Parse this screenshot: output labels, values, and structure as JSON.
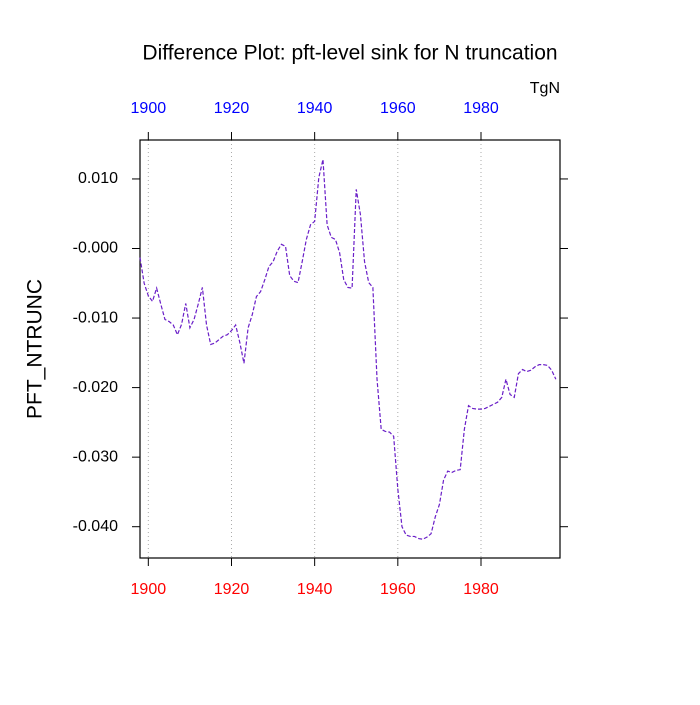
{
  "chart_data": {
    "type": "line",
    "title": "Difference Plot: pft-level sink for N truncation",
    "units": "TgN",
    "ylabel": "PFT_NTRUNC",
    "x": [
      1898,
      1899,
      1900,
      1901,
      1902,
      1903,
      1904,
      1905,
      1906,
      1907,
      1908,
      1909,
      1910,
      1911,
      1912,
      1913,
      1914,
      1915,
      1916,
      1917,
      1918,
      1919,
      1920,
      1921,
      1922,
      1923,
      1924,
      1925,
      1926,
      1927,
      1928,
      1929,
      1930,
      1931,
      1932,
      1933,
      1934,
      1935,
      1936,
      1937,
      1938,
      1939,
      1940,
      1941,
      1942,
      1943,
      1944,
      1945,
      1946,
      1947,
      1948,
      1949,
      1950,
      1951,
      1952,
      1953,
      1954,
      1955,
      1956,
      1957,
      1958,
      1959,
      1960,
      1961,
      1962,
      1963,
      1964,
      1965,
      1966,
      1967,
      1968,
      1969,
      1970,
      1971,
      1972,
      1973,
      1974,
      1975,
      1976,
      1977,
      1978,
      1979,
      1980,
      1981,
      1982,
      1983,
      1984,
      1985,
      1986,
      1987,
      1988,
      1989,
      1990,
      1991,
      1992,
      1993,
      1994,
      1995,
      1996,
      1997,
      1998
    ],
    "series": [
      {
        "name": "PFT_NTRUNC",
        "color": "#6a1fc8",
        "values": [
          -0.0013,
          -0.005,
          -0.0068,
          -0.0076,
          -0.0057,
          -0.008,
          -0.0102,
          -0.0105,
          -0.011,
          -0.0124,
          -0.0109,
          -0.0079,
          -0.0114,
          -0.0102,
          -0.008,
          -0.0056,
          -0.011,
          -0.0138,
          -0.0136,
          -0.0131,
          -0.0126,
          -0.0124,
          -0.0118,
          -0.011,
          -0.0135,
          -0.0165,
          -0.0114,
          -0.0095,
          -0.0069,
          -0.0062,
          -0.0045,
          -0.0026,
          -0.0019,
          -0.0004,
          0.0006,
          0.0003,
          -0.0039,
          -0.0047,
          -0.0049,
          -0.0019,
          0.0013,
          0.0034,
          0.0039,
          0.0102,
          0.0128,
          0.0034,
          0.0016,
          0.0013,
          -0.0006,
          -0.0045,
          -0.0056,
          -0.0057,
          0.0085,
          0.0049,
          -0.0019,
          -0.0049,
          -0.0056,
          -0.0188,
          -0.026,
          -0.0263,
          -0.0264,
          -0.027,
          -0.0346,
          -0.04,
          -0.0412,
          -0.0414,
          -0.0414,
          -0.0417,
          -0.0418,
          -0.0415,
          -0.041,
          -0.0386,
          -0.0368,
          -0.0333,
          -0.032,
          -0.0322,
          -0.0319,
          -0.0318,
          -0.026,
          -0.0226,
          -0.023,
          -0.0231,
          -0.0231,
          -0.023,
          -0.0227,
          -0.0224,
          -0.0221,
          -0.0214,
          -0.0188,
          -0.021,
          -0.0214,
          -0.018,
          -0.0174,
          -0.0177,
          -0.0175,
          -0.017,
          -0.0167,
          -0.0167,
          -0.0168,
          -0.0175,
          -0.0188
        ]
      }
    ],
    "xlim": [
      1898,
      1999
    ],
    "xticks": [
      1900,
      1920,
      1940,
      1960,
      1980
    ],
    "ylim": [
      -0.0445,
      0.0156
    ],
    "yticks": [
      {
        "value": 0.01,
        "label": "0.010"
      },
      {
        "value": 0,
        "label": "-0.000"
      },
      {
        "value": -0.01,
        "label": "-0.010"
      },
      {
        "value": -0.02,
        "label": "-0.020"
      },
      {
        "value": -0.03,
        "label": "-0.030"
      },
      {
        "value": -0.04,
        "label": "-0.040"
      }
    ],
    "xtick_color_bottom": "#ff0000",
    "xtick_color_top": "#0000ff",
    "grid": "x",
    "line_style": "dashed"
  }
}
